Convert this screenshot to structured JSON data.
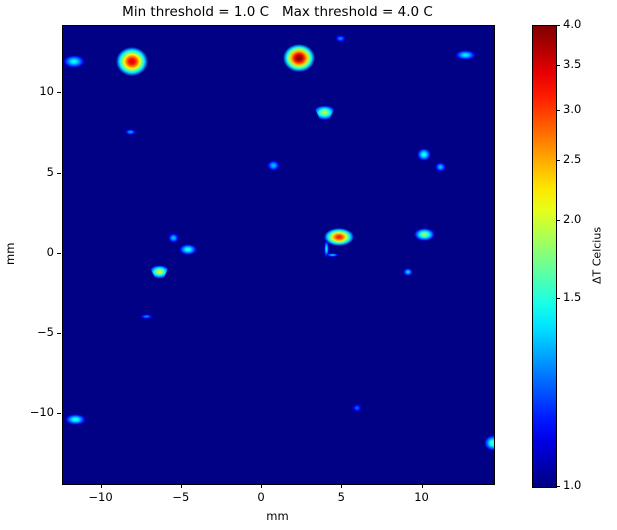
{
  "chart_data": {
    "type": "heatmap",
    "title": "Min threshold = 1.0 C   Max threshold = 4.0 C",
    "xlabel": "mm",
    "ylabel": "mm",
    "xlim": [
      -12.4,
      14.45
    ],
    "ylim": [
      -14.33,
      14.2
    ],
    "xticks": [
      -10,
      -5,
      0,
      5,
      10
    ],
    "xtick_labels": [
      "−10",
      "−5",
      "0",
      "5",
      "10"
    ],
    "yticks": [
      -10,
      -5,
      0,
      5,
      10
    ],
    "ytick_labels": [
      "−10",
      "−5",
      "0",
      "5",
      "10"
    ],
    "grid": false,
    "colormap": "jet",
    "background_value": 1.0,
    "background_color": "#010186",
    "norm": {
      "type": "power",
      "gamma": 0.5,
      "vmin": 1.0,
      "vmax": 4.0
    },
    "colorbar": {
      "label": "ΔT Celcius",
      "side": "right",
      "ticks": [
        1.0,
        1.5,
        2.0,
        2.5,
        3.0,
        3.5,
        4.0
      ],
      "tick_labels": [
        "1.0",
        "1.5",
        "2.0",
        "2.5",
        "3.0",
        "3.5",
        "4.0"
      ]
    },
    "hotspots": [
      {
        "x": -8.1,
        "y": 12.0,
        "peak": 3.5,
        "rx": 1.0,
        "ry": 0.9
      },
      {
        "x": 2.3,
        "y": 12.2,
        "peak": 4.0,
        "rx": 1.0,
        "ry": 0.85
      },
      {
        "x": -11.7,
        "y": 12.0,
        "peak": 1.45,
        "rx": 0.7,
        "ry": 0.4
      },
      {
        "x": 12.7,
        "y": 12.4,
        "peak": 1.4,
        "rx": 0.65,
        "ry": 0.3
      },
      {
        "x": 4.9,
        "y": 13.4,
        "peak": 1.2,
        "rx": 0.35,
        "ry": 0.22
      },
      {
        "x": 3.9,
        "y": 8.6,
        "peak": 1.9,
        "rx": 0.7,
        "ry": 0.65,
        "shape": "triangle-down"
      },
      {
        "x": -8.2,
        "y": 7.6,
        "peak": 1.25,
        "rx": 0.35,
        "ry": 0.2
      },
      {
        "x": 0.7,
        "y": 5.5,
        "peak": 1.3,
        "rx": 0.4,
        "ry": 0.35
      },
      {
        "x": 10.1,
        "y": 6.2,
        "peak": 1.5,
        "rx": 0.45,
        "ry": 0.4
      },
      {
        "x": 11.1,
        "y": 5.4,
        "peak": 1.3,
        "rx": 0.35,
        "ry": 0.3
      },
      {
        "x": 4.8,
        "y": 1.05,
        "peak": 3.2,
        "rx": 0.95,
        "ry": 0.55
      },
      {
        "x": 4.0,
        "y": 0.3,
        "peak": 1.4,
        "rx": 0.15,
        "ry": 0.55
      },
      {
        "x": 4.4,
        "y": -0.05,
        "peak": 1.3,
        "rx": 0.4,
        "ry": 0.12
      },
      {
        "x": 10.1,
        "y": 1.2,
        "peak": 1.8,
        "rx": 0.65,
        "ry": 0.42
      },
      {
        "x": -5.5,
        "y": 1.0,
        "peak": 1.3,
        "rx": 0.35,
        "ry": 0.3
      },
      {
        "x": -4.6,
        "y": 0.3,
        "peak": 1.5,
        "rx": 0.55,
        "ry": 0.35
      },
      {
        "x": -6.4,
        "y": -1.3,
        "peak": 2.0,
        "rx": 0.65,
        "ry": 0.6,
        "shape": "triangle-down"
      },
      {
        "x": -7.2,
        "y": -3.9,
        "peak": 1.2,
        "rx": 0.4,
        "ry": 0.18
      },
      {
        "x": 9.1,
        "y": -1.1,
        "peak": 1.35,
        "rx": 0.3,
        "ry": 0.25
      },
      {
        "x": 5.9,
        "y": -9.6,
        "peak": 1.15,
        "rx": 0.3,
        "ry": 0.25
      },
      {
        "x": -11.6,
        "y": -10.3,
        "peak": 1.5,
        "rx": 0.65,
        "ry": 0.35
      },
      {
        "x": 14.4,
        "y": -11.8,
        "peak": 1.6,
        "rx": 0.55,
        "ry": 0.5
      }
    ]
  }
}
